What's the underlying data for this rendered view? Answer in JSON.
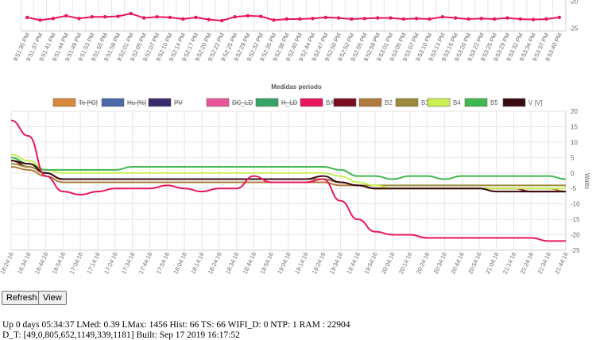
{
  "chart_data": [
    {
      "type": "line",
      "title": "",
      "x": [
        "9:51:35 PM",
        "9:51:37 PM",
        "9:51:41 PM",
        "9:51:44 PM",
        "9:51:49 PM",
        "9:51:53 PM",
        "9:51:55 PM",
        "9:51:59 PM",
        "9:52:01 PM",
        "9:52:05 PM",
        "9:52:07 PM",
        "9:52:10 PM",
        "9:52:14 PM",
        "9:52:17 PM",
        "9:52:20 PM",
        "9:52:22 PM",
        "9:52:25 PM",
        "9:52:29 PM",
        "9:52:32 PM",
        "9:52:35 PM",
        "9:52:38 PM",
        "9:52:40 PM",
        "9:52:44 PM",
        "9:52:47 PM",
        "9:52:50 PM",
        "9:52:52 PM",
        "9:52:55 PM",
        "9:52:59 PM",
        "9:53:01 PM",
        "9:53:05 PM",
        "9:53:07 PM",
        "9:53:10 PM",
        "9:53:13 PM",
        "9:53:16 PM",
        "9:53:20 PM",
        "9:53:22 PM",
        "9:53:25 PM",
        "9:53:29 PM",
        "9:53:32 PM",
        "9:53:34 PM",
        "9:53:37 PM",
        "9:53:40 PM"
      ],
      "y_ticks": [
        "-20",
        "-25"
      ],
      "ylim": [
        -25.5,
        -19.8
      ],
      "series": [
        {
          "color": "#e8175d",
          "values": [
            -23.0,
            -23.5,
            -23.2,
            -22.7,
            -23.2,
            -22.9,
            -22.9,
            -22.8,
            -22.3,
            -23.1,
            -22.9,
            -23.0,
            -23.3,
            -23.0,
            -23.4,
            -23.6,
            -22.9,
            -22.7,
            -22.8,
            -23.5,
            -23.3,
            -23.3,
            -23.2,
            -23.0,
            -23.1,
            -23.3,
            -23.2,
            -23.1,
            -23.1,
            -23.3,
            -23.2,
            -23.3,
            -22.9,
            -23.1,
            -23.3,
            -23.2,
            -23.3,
            -23.1,
            -23.3,
            -23.4,
            -23.3,
            -23.0
          ]
        }
      ]
    },
    {
      "type": "line",
      "title": "Medidas periodo",
      "ylabel": "Watts",
      "ylim": [
        -25,
        20
      ],
      "y_ticks": [
        "20",
        "15",
        "10",
        "5",
        "0",
        "-5",
        "-10",
        "-15",
        "-20",
        "-25"
      ],
      "x": [
        "16:24:16",
        "16:34:16",
        "16:44:16",
        "16:54:16",
        "17:04:16",
        "17:14:16",
        "17:24:16",
        "17:34:16",
        "17:44:16",
        "17:54:16",
        "18:04:16",
        "18:14:16",
        "18:24:16",
        "18:34:16",
        "18:44:16",
        "18:54:16",
        "19:04:16",
        "19:14:16",
        "19:24:16",
        "19:34:16",
        "19:44:16",
        "19:54:16",
        "20:04:16",
        "20:14:16",
        "20:24:16",
        "20:34:16",
        "20:44:16",
        "20:54:16",
        "21:04:16",
        "21:14:16",
        "21:24:16",
        "21:34:16",
        "21:44:16"
      ],
      "legend": [
        {
          "label": "Te [ºC]",
          "color": "#d9893a",
          "hidden": true
        },
        {
          "label": "Hu [%]",
          "color": "#4a6aa8",
          "hidden": true
        },
        {
          "label": "PV",
          "color": "#3b2a6b",
          "hidden": true
        },
        {
          "label": "DC_LD",
          "color": "#e8559a",
          "hidden": true
        },
        {
          "label": "H_LD",
          "color": "#3aa36a",
          "hidden": true
        },
        {
          "label": "BANK",
          "color": "#e8175d",
          "hidden": false
        },
        {
          "label": "B1",
          "color": "#7a0e1e",
          "hidden": false
        },
        {
          "label": "B2",
          "color": "#b07a3a",
          "hidden": false
        },
        {
          "label": "B3",
          "color": "#9a8a3a",
          "hidden": false
        },
        {
          "label": "B4",
          "color": "#c8f050",
          "hidden": false
        },
        {
          "label": "B5",
          "color": "#3fb84f",
          "hidden": false
        },
        {
          "label": "V [V]",
          "color": "#3a0a12",
          "hidden": false
        }
      ],
      "series": [
        {
          "name": "BANK",
          "color": "#e8175d",
          "values": [
            17,
            12,
            -1,
            -6,
            -7,
            -6,
            -5,
            -5,
            -5,
            -4,
            -5,
            -6,
            -5,
            -5,
            -1,
            -3,
            -3,
            -3,
            -2,
            -9,
            -15,
            -19,
            -20,
            -20,
            -21,
            -21,
            -21,
            -21,
            -21,
            -21,
            -21,
            -22,
            -22
          ]
        },
        {
          "name": "B1",
          "color": "#7a0e1e",
          "values": [
            4,
            2,
            0,
            -2,
            -2,
            -2,
            -2,
            -2,
            -2,
            -2,
            -2,
            -2,
            -2,
            -2,
            -2,
            -2,
            -2,
            -2,
            -2,
            -3,
            -4,
            -5,
            -5,
            -5,
            -5,
            -5,
            -5,
            -5,
            -5,
            -5,
            -6,
            -6,
            -6
          ]
        },
        {
          "name": "B2",
          "color": "#b07a3a",
          "values": [
            2,
            1,
            -1,
            -3,
            -3,
            -3,
            -3,
            -3,
            -3,
            -3,
            -3,
            -3,
            -3,
            -3,
            -3,
            -3,
            -3,
            -3,
            -3,
            -4,
            -4,
            -5,
            -5,
            -5,
            -5,
            -5,
            -5,
            -5,
            -5,
            -5,
            -5,
            -5,
            -6
          ]
        },
        {
          "name": "B3",
          "color": "#9a8a3a",
          "values": [
            3,
            2,
            0,
            -2,
            -2,
            -2,
            -2,
            -2,
            -2,
            -2,
            -2,
            -2,
            -2,
            -2,
            -2,
            -2,
            -2,
            -2,
            -2,
            -3,
            -4,
            -4,
            -4,
            -4,
            -4,
            -4,
            -4,
            -4,
            -4,
            -4,
            -4,
            -4,
            -4
          ]
        },
        {
          "name": "B4",
          "color": "#c8f050",
          "values": [
            6,
            4,
            1,
            0,
            0,
            0,
            0,
            0,
            0,
            0,
            0,
            0,
            0,
            0,
            0,
            0,
            0,
            0,
            0,
            -1,
            -3,
            -4,
            -5,
            -5,
            -5,
            -5,
            -5,
            -5,
            -5,
            -5,
            -5,
            -5,
            -5
          ]
        },
        {
          "name": "B5",
          "color": "#3fb84f",
          "values": [
            5,
            3,
            1,
            1,
            1,
            1,
            1,
            2,
            2,
            2,
            2,
            2,
            2,
            2,
            2,
            2,
            2,
            2,
            2,
            1,
            -1,
            -1,
            -2,
            -1,
            -1,
            -2,
            -1,
            -1,
            -1,
            -1,
            -1,
            -1,
            -2
          ]
        },
        {
          "name": "V [V]",
          "color": "#3a0a12",
          "values": [
            4,
            3,
            0,
            -2,
            -2,
            -2,
            -2,
            -2,
            -2,
            -2,
            -2,
            -2,
            -2,
            -2,
            -2,
            -2,
            -2,
            -2,
            -1,
            -3,
            -4,
            -5,
            -5,
            -5,
            -5,
            -5,
            -5,
            -5,
            -6,
            -6,
            -6,
            -6,
            -6
          ]
        }
      ]
    }
  ],
  "buttons": {
    "refresh_label": "Refresh",
    "view_label": "View"
  },
  "status": {
    "line1": "Up 0 days 05:34:37 LMed: 0.39 LMax: 1456 Hist: 66 TS: 66 WIFI_D: 0 NTP: 1 RAM : 22904",
    "line2": "D_T: [49,0,805,652,1149,339,1181] Built: Sep 17 2019 16:17:52"
  }
}
